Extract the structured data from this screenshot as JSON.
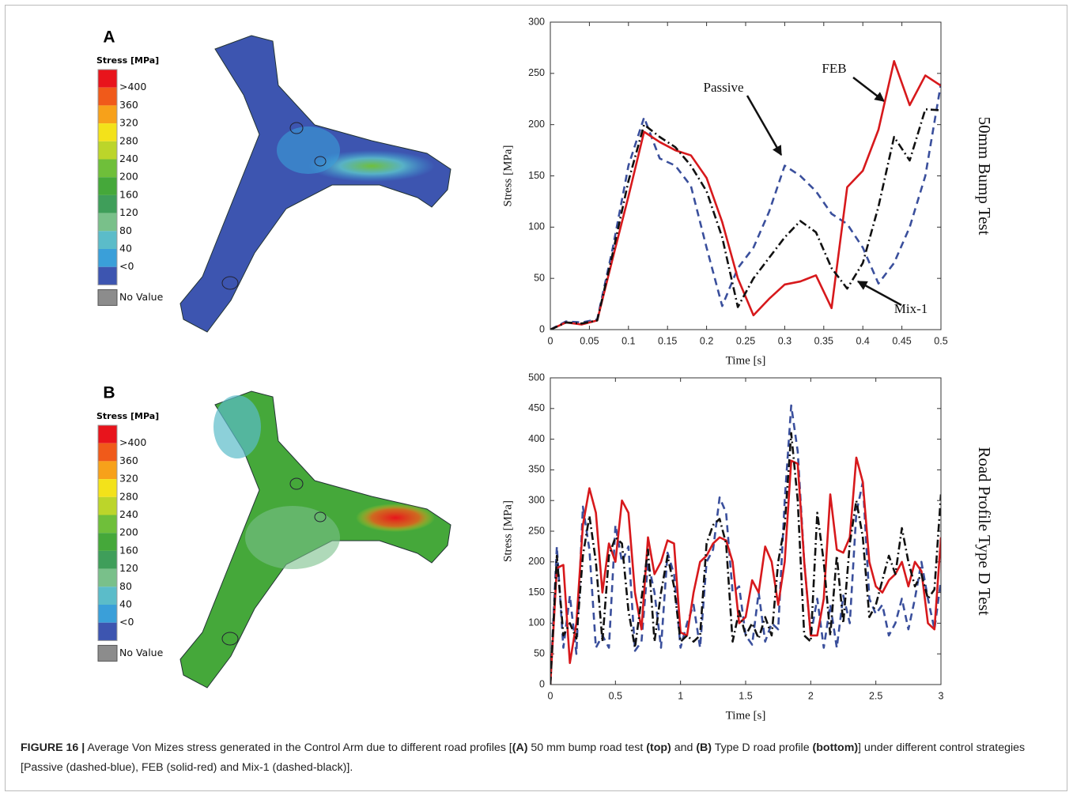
{
  "panels": [
    {
      "label": "A",
      "legend_title": "Stress [MPa]",
      "scale": [
        ">400",
        "360",
        "320",
        "280",
        "240",
        "200",
        "160",
        "120",
        "80",
        "40",
        "<0"
      ],
      "no_value": "No Value"
    },
    {
      "label": "B",
      "legend_title": "Stress [MPa]",
      "scale": [
        ">400",
        "360",
        "320",
        "280",
        "240",
        "200",
        "160",
        "120",
        "80",
        "40",
        "<0"
      ],
      "no_value": "No Value"
    }
  ],
  "chart_data": [
    {
      "type": "line",
      "xlabel": "Time [s]",
      "ylabel": "Stress [MPa]",
      "side_title": "50mm Bump Test",
      "xlim": [
        0,
        0.5
      ],
      "xticks": [
        0,
        0.05,
        0.1,
        0.15,
        0.2,
        0.25,
        0.3,
        0.35,
        0.4,
        0.45,
        0.5
      ],
      "ylim": [
        0,
        300
      ],
      "yticks": [
        0,
        50,
        100,
        150,
        200,
        250,
        300
      ],
      "annotations": [
        "Passive",
        "FEB",
        "Mix-1"
      ],
      "x": [
        0,
        0.02,
        0.04,
        0.06,
        0.08,
        0.1,
        0.12,
        0.14,
        0.16,
        0.18,
        0.2,
        0.22,
        0.24,
        0.26,
        0.28,
        0.3,
        0.32,
        0.34,
        0.36,
        0.38,
        0.4,
        0.42,
        0.44,
        0.46,
        0.48,
        0.5
      ],
      "series": [
        {
          "name": "Passive",
          "color": "#3a4f9c",
          "style": "dashed",
          "values": [
            0,
            8,
            7,
            10,
            80,
            160,
            207,
            167,
            160,
            140,
            80,
            23,
            60,
            80,
            115,
            160,
            150,
            135,
            113,
            103,
            80,
            45,
            65,
            100,
            150,
            240
          ]
        },
        {
          "name": "FEB",
          "color": "#d7191c",
          "style": "solid",
          "values": [
            0,
            7,
            5,
            9,
            70,
            130,
            193,
            183,
            175,
            170,
            148,
            105,
            50,
            14,
            30,
            44,
            47,
            53,
            21,
            139,
            155,
            195,
            262,
            219,
            248,
            238
          ]
        },
        {
          "name": "Mix-1",
          "color": "#111111",
          "style": "dashdot",
          "values": [
            0,
            7,
            6,
            9,
            75,
            145,
            200,
            188,
            178,
            160,
            135,
            90,
            22,
            50,
            70,
            90,
            106,
            95,
            60,
            40,
            65,
            120,
            188,
            165,
            215,
            214
          ]
        }
      ]
    },
    {
      "type": "line",
      "xlabel": "Time [s]",
      "ylabel": "Stress [MPa]",
      "side_title": "Road Profile Type D Test",
      "xlim": [
        0,
        3
      ],
      "xticks": [
        0,
        0.5,
        1,
        1.5,
        2,
        2.5,
        3
      ],
      "ylim": [
        0,
        500
      ],
      "yticks": [
        0,
        50,
        100,
        150,
        200,
        250,
        300,
        350,
        400,
        450,
        500
      ],
      "x": [
        0,
        0.05,
        0.1,
        0.15,
        0.2,
        0.25,
        0.3,
        0.35,
        0.4,
        0.45,
        0.5,
        0.55,
        0.6,
        0.65,
        0.7,
        0.75,
        0.8,
        0.85,
        0.9,
        0.95,
        1,
        1.05,
        1.1,
        1.15,
        1.2,
        1.25,
        1.3,
        1.35,
        1.4,
        1.45,
        1.5,
        1.55,
        1.6,
        1.65,
        1.7,
        1.75,
        1.8,
        1.85,
        1.9,
        1.95,
        2,
        2.05,
        2.1,
        2.15,
        2.2,
        2.25,
        2.3,
        2.35,
        2.4,
        2.45,
        2.5,
        2.55,
        2.6,
        2.65,
        2.7,
        2.75,
        2.8,
        2.85,
        2.9,
        2.95,
        3
      ],
      "series": [
        {
          "name": "Passive",
          "color": "#3a4f9c",
          "style": "dashed",
          "values": [
            0,
            225,
            60,
            145,
            50,
            290,
            220,
            60,
            80,
            60,
            260,
            200,
            225,
            55,
            70,
            200,
            150,
            60,
            215,
            180,
            60,
            100,
            130,
            60,
            200,
            220,
            305,
            280,
            150,
            160,
            80,
            65,
            150,
            70,
            100,
            90,
            300,
            455,
            380,
            200,
            80,
            140,
            60,
            130,
            60,
            145,
            100,
            280,
            330,
            140,
            115,
            130,
            80,
            100,
            140,
            90,
            140,
            200,
            140,
            90,
            170
          ]
        },
        {
          "name": "FEB",
          "color": "#d7191c",
          "style": "solid",
          "values": [
            0,
            190,
            195,
            35,
            100,
            260,
            320,
            280,
            150,
            230,
            200,
            300,
            280,
            150,
            90,
            240,
            180,
            200,
            235,
            230,
            85,
            80,
            150,
            200,
            210,
            230,
            240,
            235,
            200,
            100,
            110,
            170,
            150,
            225,
            200,
            130,
            200,
            365,
            360,
            200,
            80,
            80,
            140,
            310,
            220,
            215,
            240,
            370,
            330,
            200,
            160,
            150,
            170,
            180,
            200,
            160,
            200,
            185,
            100,
            90,
            240
          ]
        },
        {
          "name": "Mix-1",
          "color": "#111111",
          "style": "dashdot",
          "values": [
            0,
            210,
            80,
            100,
            75,
            210,
            275,
            200,
            70,
            210,
            240,
            230,
            120,
            60,
            140,
            220,
            70,
            150,
            210,
            160,
            70,
            80,
            70,
            80,
            230,
            260,
            270,
            230,
            70,
            120,
            80,
            100,
            75,
            110,
            80,
            200,
            260,
            410,
            300,
            80,
            70,
            280,
            200,
            80,
            210,
            100,
            230,
            300,
            240,
            110,
            130,
            170,
            210,
            180,
            255,
            200,
            160,
            180,
            140,
            155,
            310
          ]
        }
      ]
    }
  ],
  "caption": {
    "segments": [
      {
        "text": "FIGURE 16 |",
        "bold": true
      },
      {
        "text": " Average Von Mizes stress generated in the Control Arm due to different road profiles [",
        "bold": false
      },
      {
        "text": "(A)",
        "bold": true
      },
      {
        "text": " 50 mm bump road test ",
        "bold": false
      },
      {
        "text": "(top)",
        "bold": true
      },
      {
        "text": " and ",
        "bold": false
      },
      {
        "text": "(B)",
        "bold": true
      },
      {
        "text": " Type D road profile ",
        "bold": false
      },
      {
        "text": "(bottom)",
        "bold": true
      },
      {
        "text": "] under different control strategies [Passive (dashed-blue), FEB (solid-red) and Mix-1 (dashed-black)].",
        "bold": false
      }
    ]
  }
}
